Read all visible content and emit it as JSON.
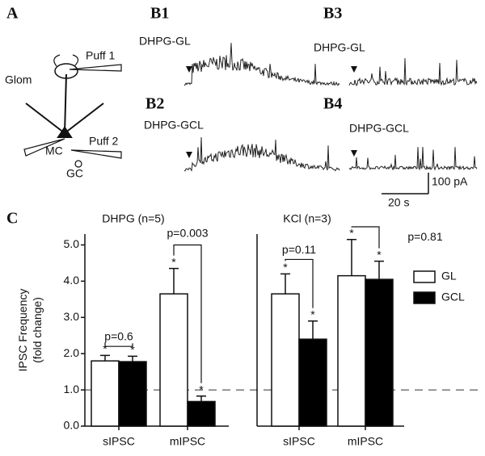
{
  "figure": {
    "panel_a": {
      "label": "A",
      "glom": "Glom",
      "puff1": "Puff 1",
      "mc": "MC",
      "puff2": "Puff 2",
      "gc": "GC"
    },
    "panel_b": [
      {
        "label": "B1",
        "trace": "DHPG-GL"
      },
      {
        "label": "B2",
        "trace": "DHPG-GCL"
      },
      {
        "label": "B3",
        "trace": "DHPG-GL"
      },
      {
        "label": "B4",
        "trace": "DHPG-GCL"
      }
    ],
    "scale_bar": {
      "time": "20 s",
      "current": "100 pA"
    },
    "panel_c_label": "C"
  },
  "chart_data": {
    "type": "bar",
    "ylabel": [
      "IPSC Frequency",
      "(fold change)"
    ],
    "ylim": [
      0,
      5.3
    ],
    "yticks": [
      {
        "value": 0,
        "label": "0.0"
      },
      {
        "value": 1,
        "label": "1.0"
      },
      {
        "value": 2,
        "label": "2.0"
      },
      {
        "value": 3,
        "label": "3.0"
      },
      {
        "value": 4,
        "label": "4.0"
      },
      {
        "value": 5,
        "label": "5.0"
      }
    ],
    "reference_line": 1,
    "significance_marker": "*",
    "legend": [
      {
        "name": "GL",
        "color": "#ffffff"
      },
      {
        "name": "GCL",
        "color": "#000000"
      }
    ],
    "subplots": [
      {
        "title": "DHPG (n=5)",
        "categories": [
          "sIPSC",
          "mIPSC"
        ],
        "series": [
          {
            "values": [
              1.8,
              3.65
            ],
            "errors": [
              0.15,
              0.7
            ]
          },
          {
            "values": [
              1.78,
              0.68
            ],
            "errors": [
              0.15,
              0.15
            ]
          }
        ],
        "annotations": [
          "p=0.6",
          "p=0.003"
        ]
      },
      {
        "title": "KCl (n=3)",
        "categories": [
          "sIPSC",
          "mIPSC"
        ],
        "series": [
          {
            "values": [
              3.65,
              4.15
            ],
            "errors": [
              0.55,
              1.0
            ]
          },
          {
            "values": [
              2.4,
              4.05
            ],
            "errors": [
              0.5,
              0.5
            ]
          }
        ],
        "annotations": [
          "p=0.11",
          "p=0.81"
        ]
      }
    ]
  }
}
